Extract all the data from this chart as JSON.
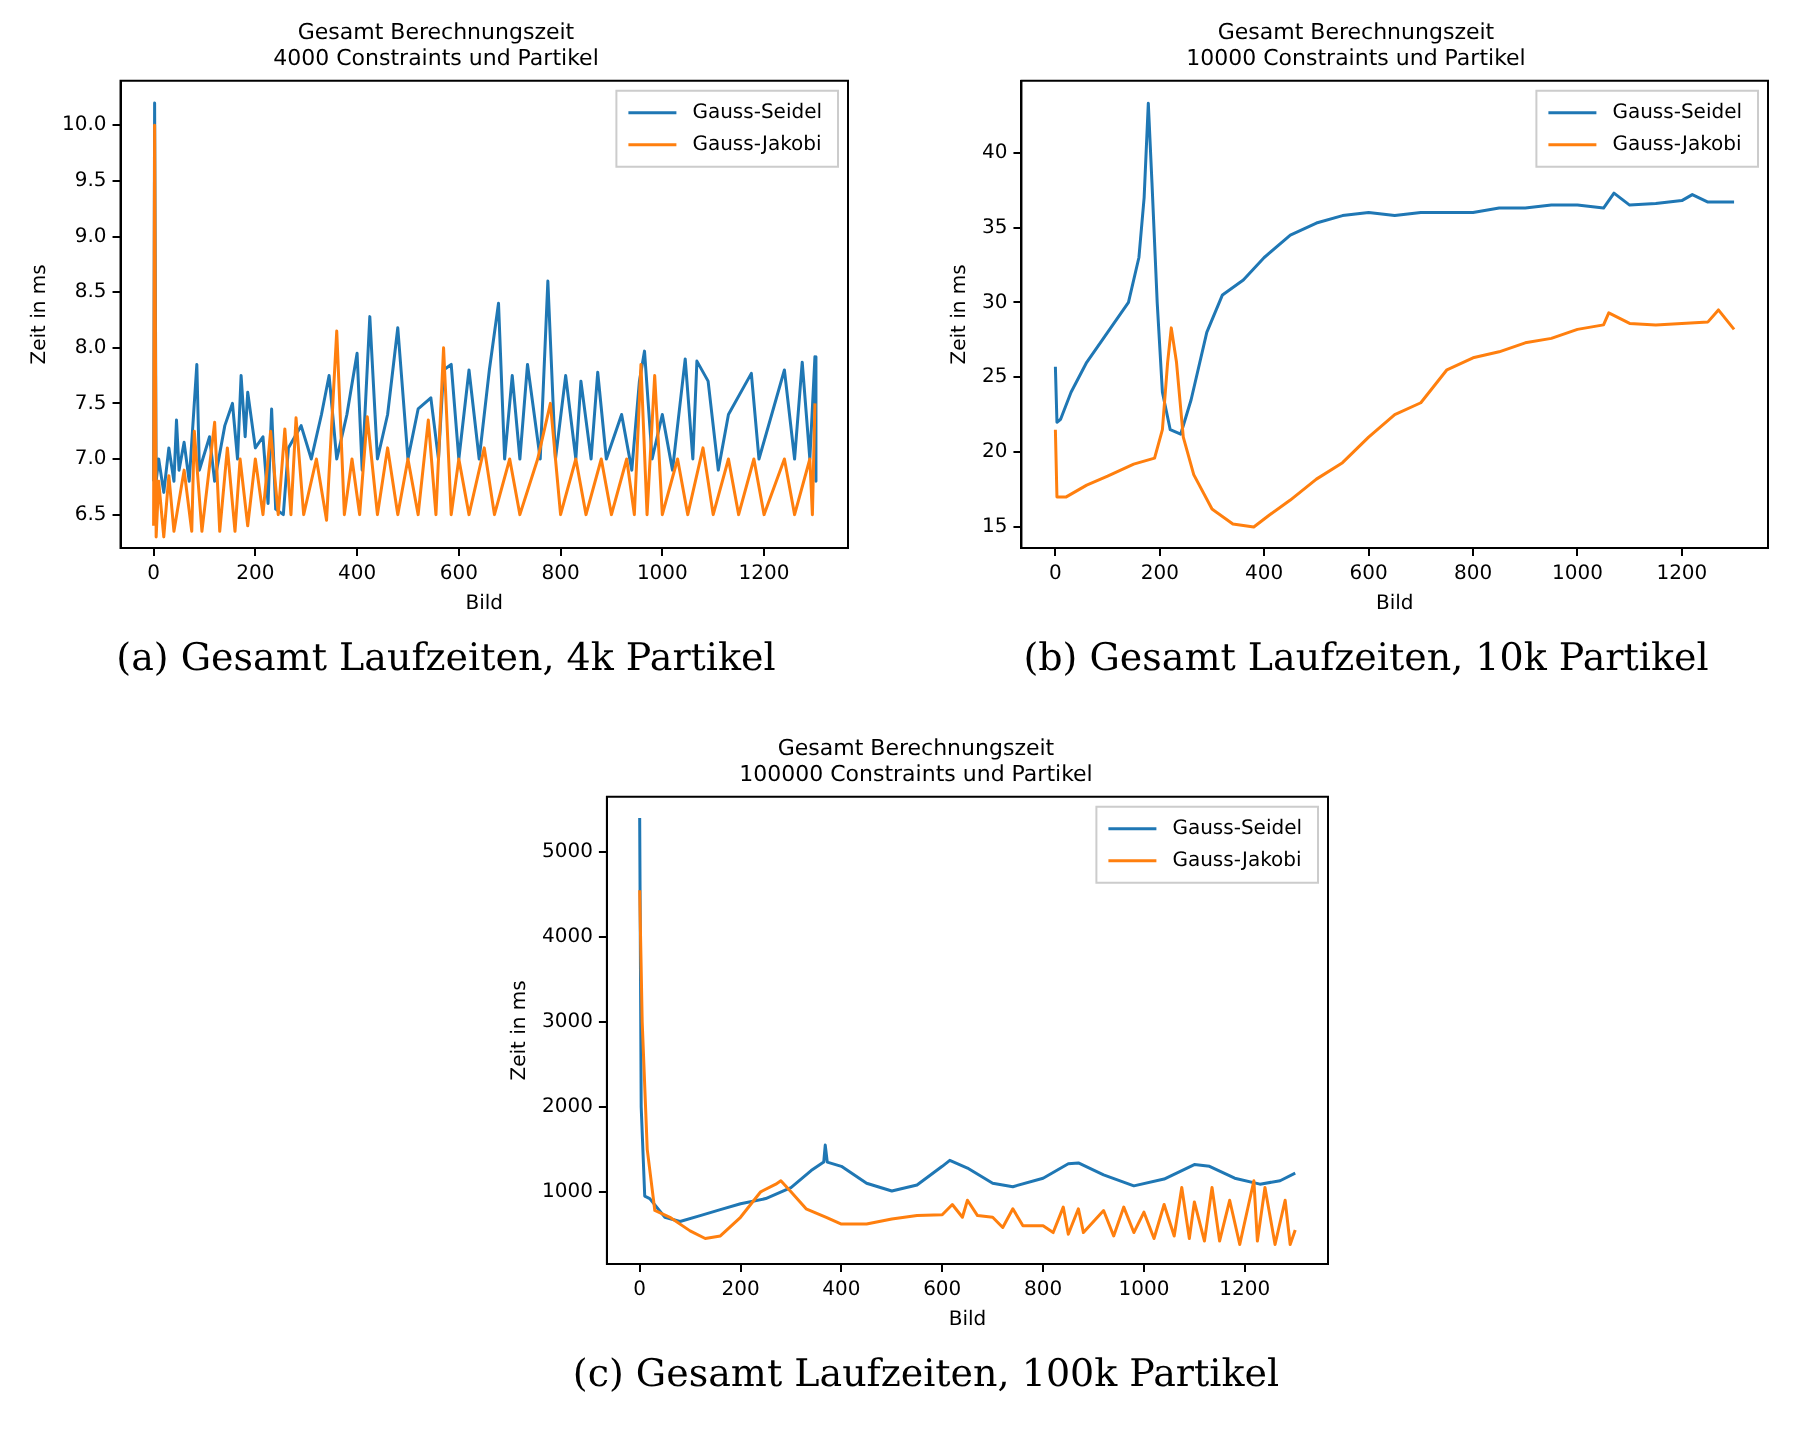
{
  "chart_data": [
    {
      "type": "line",
      "title": "Gesamt Berechnungszeit",
      "subtitle": "4000 Constraints und Partikel",
      "xlabel": "Bild",
      "ylabel": "Zeit in ms",
      "xlim": [
        -65,
        1365
      ],
      "xticks": [
        0,
        200,
        400,
        600,
        800,
        1000,
        1200
      ],
      "ylim": [
        6.2,
        10.4
      ],
      "yticks": [
        {
          "value": 6.5,
          "label": "6.5"
        },
        {
          "value": 7,
          "label": "7.0"
        },
        {
          "value": 7.5,
          "label": "7.5"
        },
        {
          "value": 8,
          "label": "8.0"
        },
        {
          "value": 8.5,
          "label": "8.5"
        },
        {
          "value": 9,
          "label": "9.0"
        },
        {
          "value": 9.5,
          "label": "9.5"
        },
        {
          "value": 10,
          "label": "10.0"
        }
      ],
      "grid": false,
      "legend": "top right",
      "annotations": [
        "(a) Gesamt Laufzeiten, 4k Partikel"
      ],
      "series": [
        {
          "name": "Gauss-Seidel",
          "color": "#1f77b4",
          "x": [
            0,
            2,
            5,
            10,
            20,
            30,
            40,
            45,
            50,
            60,
            70,
            85,
            90,
            110,
            120,
            140,
            155,
            165,
            172,
            180,
            185,
            200,
            215,
            225,
            232,
            240,
            255,
            265,
            290,
            310,
            330,
            345,
            360,
            380,
            400,
            410,
            425,
            440,
            460,
            480,
            500,
            520,
            545,
            560,
            570,
            585,
            600,
            620,
            640,
            660,
            678,
            690,
            705,
            720,
            735,
            760,
            775,
            790,
            810,
            830,
            840,
            860,
            873,
            890,
            920,
            940,
            955,
            965,
            980,
            1000,
            1020,
            1045,
            1060,
            1068,
            1090,
            1110,
            1130,
            1175,
            1190,
            1240,
            1260,
            1275,
            1290,
            1300,
            1302
          ],
          "values": [
            6.8,
            10.2,
            6.8,
            7.0,
            6.7,
            7.1,
            6.8,
            7.35,
            6.9,
            7.15,
            6.8,
            7.85,
            6.9,
            7.2,
            6.8,
            7.3,
            7.5,
            7.0,
            7.75,
            7.2,
            7.6,
            7.1,
            7.2,
            6.6,
            7.45,
            6.55,
            6.5,
            7.1,
            7.3,
            7.0,
            7.4,
            7.75,
            7.0,
            7.4,
            7.95,
            6.9,
            8.28,
            7.0,
            7.4,
            8.18,
            7.0,
            7.45,
            7.55,
            7.0,
            7.8,
            7.85,
            7.0,
            7.8,
            7.0,
            7.8,
            8.4,
            7.0,
            7.75,
            7.0,
            7.85,
            7.0,
            8.6,
            7.0,
            7.75,
            7.0,
            7.7,
            7.0,
            7.78,
            7.0,
            7.4,
            6.9,
            7.7,
            7.97,
            7.0,
            7.4,
            6.9,
            7.9,
            7.0,
            7.88,
            7.7,
            6.9,
            7.4,
            7.77,
            7.0,
            7.8,
            7.0,
            7.87,
            7.0,
            7.92,
            6.8
          ]
        },
        {
          "name": "Gauss-Jakobi",
          "color": "#ff7f0e",
          "x": [
            0,
            2,
            5,
            10,
            20,
            30,
            40,
            60,
            75,
            80,
            95,
            120,
            130,
            145,
            160,
            170,
            185,
            200,
            215,
            230,
            245,
            258,
            270,
            280,
            295,
            320,
            340,
            360,
            375,
            390,
            405,
            420,
            440,
            460,
            480,
            500,
            520,
            540,
            555,
            570,
            585,
            600,
            620,
            650,
            670,
            700,
            720,
            755,
            780,
            800,
            830,
            850,
            880,
            900,
            930,
            945,
            958,
            970,
            985,
            1000,
            1030,
            1050,
            1080,
            1100,
            1130,
            1150,
            1180,
            1200,
            1240,
            1260,
            1290,
            1295,
            1300
          ],
          "values": [
            6.4,
            10.0,
            6.3,
            6.8,
            6.3,
            6.85,
            6.35,
            6.9,
            6.35,
            7.25,
            6.35,
            7.33,
            6.35,
            7.1,
            6.35,
            7.0,
            6.4,
            7.0,
            6.5,
            7.25,
            6.5,
            7.27,
            6.5,
            7.37,
            6.5,
            7.0,
            6.45,
            8.15,
            6.5,
            7.0,
            6.5,
            7.38,
            6.5,
            7.1,
            6.5,
            7.0,
            6.5,
            7.35,
            6.5,
            8.0,
            6.5,
            7.0,
            6.5,
            7.1,
            6.5,
            7.0,
            6.5,
            7.0,
            7.5,
            6.5,
            7.0,
            6.5,
            7.0,
            6.5,
            7.0,
            6.5,
            7.85,
            6.5,
            7.75,
            6.5,
            7.0,
            6.5,
            7.1,
            6.5,
            7.0,
            6.5,
            7.0,
            6.5,
            7.0,
            6.5,
            7.0,
            6.5,
            7.5
          ]
        }
      ]
    },
    {
      "type": "line",
      "title": "Gesamt Berechnungszeit",
      "subtitle": "10000 Constraints und Partikel",
      "xlabel": "Bild",
      "ylabel": "Zeit in ms",
      "xlim": [
        -65,
        1365
      ],
      "xticks": [
        0,
        200,
        400,
        600,
        800,
        1000,
        1200
      ],
      "ylim": [
        13.6,
        44.8
      ],
      "yticks": [
        15,
        20,
        25,
        30,
        35,
        40
      ],
      "grid": false,
      "legend": "top right",
      "annotations": [
        "(b) Gesamt Laufzeiten, 10k Partikel"
      ],
      "series": [
        {
          "name": "Gauss-Seidel",
          "color": "#1f77b4",
          "x": [
            0,
            3,
            10,
            30,
            60,
            100,
            140,
            160,
            170,
            178,
            185,
            195,
            205,
            220,
            240,
            260,
            290,
            320,
            360,
            400,
            450,
            500,
            550,
            600,
            650,
            700,
            750,
            800,
            850,
            900,
            950,
            1000,
            1050,
            1070,
            1100,
            1150,
            1200,
            1220,
            1250,
            1300
          ],
          "values": [
            25.7,
            22,
            22.2,
            24,
            26,
            28,
            30,
            33,
            37,
            43.3,
            38,
            30,
            24,
            21.5,
            21.2,
            23.5,
            28,
            30.5,
            31.5,
            33,
            34.5,
            35.3,
            35.8,
            36,
            35.8,
            36,
            36,
            36,
            36.3,
            36.3,
            36.5,
            36.5,
            36.3,
            37.3,
            36.5,
            36.6,
            36.8,
            37.2,
            36.7,
            36.7
          ]
        },
        {
          "name": "Gauss-Jakobi",
          "color": "#ff7f0e",
          "x": [
            0,
            3,
            20,
            60,
            100,
            150,
            190,
            205,
            215,
            222,
            232,
            245,
            265,
            300,
            340,
            380,
            410,
            450,
            500,
            550,
            600,
            650,
            700,
            750,
            800,
            850,
            900,
            950,
            1000,
            1050,
            1060,
            1100,
            1150,
            1200,
            1250,
            1270,
            1300
          ],
          "values": [
            21.5,
            17,
            17,
            17.8,
            18.4,
            19.2,
            19.6,
            21.5,
            26,
            28.3,
            26,
            21,
            18.5,
            16.2,
            15.2,
            15,
            15.8,
            16.8,
            18.2,
            19.3,
            21,
            22.5,
            23.3,
            25.5,
            26.3,
            26.7,
            27.3,
            27.6,
            28.2,
            28.5,
            29.3,
            28.6,
            28.5,
            28.6,
            28.7,
            29.5,
            28.2
          ]
        }
      ]
    },
    {
      "type": "line",
      "title": "Gesamt Berechnungszeit",
      "subtitle": "100000 Constraints und Partikel",
      "xlabel": "Bild",
      "ylabel": "Zeit in ms",
      "xlim": [
        -65,
        1365
      ],
      "xticks": [
        0,
        200,
        400,
        600,
        800,
        1000,
        1200
      ],
      "ylim": [
        150,
        5650
      ],
      "yticks": [
        1000,
        2000,
        3000,
        4000,
        5000
      ],
      "grid": false,
      "legend": "top right",
      "annotations": [
        "(c) Gesamt Laufzeiten, 100k Partikel"
      ],
      "series": [
        {
          "name": "Gauss-Seidel",
          "color": "#1f77b4",
          "x": [
            0,
            3,
            10,
            20,
            50,
            80,
            120,
            160,
            200,
            250,
            300,
            340,
            365,
            368,
            372,
            400,
            450,
            500,
            550,
            600,
            615,
            650,
            700,
            740,
            800,
            850,
            870,
            920,
            980,
            1040,
            1100,
            1130,
            1180,
            1230,
            1270,
            1300
          ],
          "values": [
            5400,
            2000,
            950,
            920,
            700,
            650,
            720,
            790,
            860,
            920,
            1050,
            1250,
            1350,
            1550,
            1350,
            1300,
            1100,
            1010,
            1080,
            1300,
            1370,
            1280,
            1100,
            1060,
            1160,
            1330,
            1340,
            1200,
            1070,
            1150,
            1320,
            1300,
            1160,
            1090,
            1130,
            1220
          ]
        },
        {
          "name": "Gauss-Jakobi",
          "color": "#ff7f0e",
          "x": [
            0,
            5,
            15,
            30,
            60,
            100,
            130,
            160,
            200,
            240,
            270,
            280,
            300,
            330,
            370,
            400,
            450,
            500,
            550,
            600,
            620,
            640,
            650,
            670,
            700,
            720,
            740,
            760,
            800,
            820,
            840,
            850,
            870,
            880,
            920,
            940,
            960,
            980,
            1000,
            1020,
            1040,
            1060,
            1075,
            1090,
            1100,
            1120,
            1135,
            1150,
            1170,
            1190,
            1218,
            1225,
            1240,
            1260,
            1280,
            1290,
            1300
          ],
          "values": [
            4550,
            3000,
            1500,
            780,
            700,
            540,
            450,
            480,
            700,
            1000,
            1090,
            1130,
            1000,
            800,
            700,
            620,
            620,
            680,
            720,
            730,
            850,
            700,
            900,
            720,
            700,
            580,
            800,
            600,
            600,
            520,
            820,
            500,
            800,
            520,
            780,
            480,
            820,
            520,
            760,
            450,
            850,
            480,
            1050,
            450,
            880,
            420,
            1050,
            420,
            900,
            380,
            1130,
            420,
            1050,
            380,
            900,
            380,
            550
          ]
        }
      ]
    }
  ]
}
